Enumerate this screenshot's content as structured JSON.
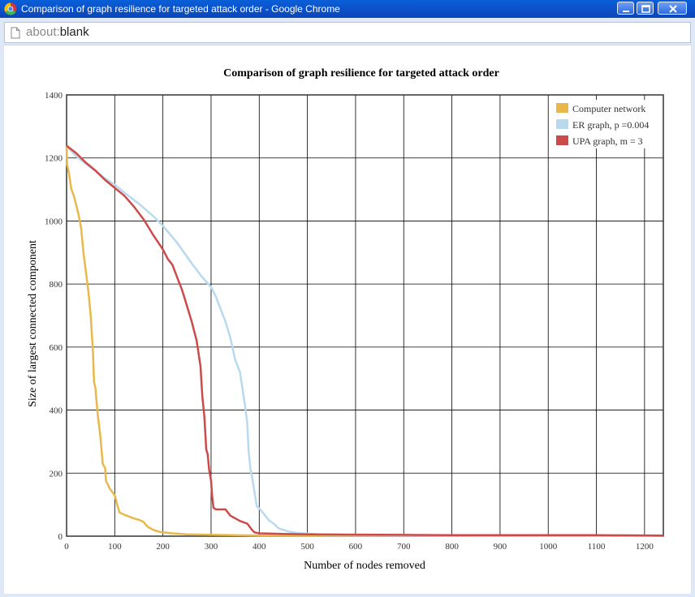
{
  "window": {
    "title": "Comparison of graph resilience for targeted attack order - Google Chrome",
    "app_icon": "chrome-icon",
    "controls": [
      "minimize-icon",
      "maximize-icon",
      "close-icon"
    ]
  },
  "address_bar": {
    "scheme": "about:",
    "path": "blank",
    "icon": "page-icon"
  },
  "chart_data": {
    "type": "line",
    "title": "Comparison of graph resilience for targeted attack order",
    "xlabel": "Number of nodes removed",
    "ylabel": "Size of largest connected component",
    "xlim": [
      0,
      1239
    ],
    "ylim": [
      0,
      1400
    ],
    "xticks": [
      0,
      100,
      200,
      300,
      400,
      500,
      600,
      700,
      800,
      900,
      1000,
      1100,
      1200
    ],
    "yticks": [
      0,
      200,
      400,
      600,
      800,
      1000,
      1200,
      1400
    ],
    "grid": true,
    "legend_position": "top-right",
    "series": [
      {
        "name": "Computer network",
        "color": "#e8b94a",
        "points": [
          [
            0,
            1239
          ],
          [
            1,
            1180
          ],
          [
            5,
            1150
          ],
          [
            10,
            1100
          ],
          [
            15,
            1080
          ],
          [
            20,
            1050
          ],
          [
            25,
            1020
          ],
          [
            30,
            980
          ],
          [
            35,
            900
          ],
          [
            40,
            840
          ],
          [
            45,
            780
          ],
          [
            50,
            700
          ],
          [
            55,
            580
          ],
          [
            57,
            490
          ],
          [
            60,
            470
          ],
          [
            62,
            430
          ],
          [
            65,
            380
          ],
          [
            70,
            320
          ],
          [
            75,
            230
          ],
          [
            80,
            215
          ],
          [
            82,
            175
          ],
          [
            90,
            150
          ],
          [
            100,
            130
          ],
          [
            105,
            100
          ],
          [
            110,
            75
          ],
          [
            120,
            68
          ],
          [
            130,
            62
          ],
          [
            140,
            56
          ],
          [
            150,
            52
          ],
          [
            160,
            45
          ],
          [
            165,
            35
          ],
          [
            170,
            28
          ],
          [
            180,
            20
          ],
          [
            190,
            15
          ],
          [
            200,
            12
          ],
          [
            220,
            9
          ],
          [
            250,
            6
          ],
          [
            300,
            4
          ],
          [
            350,
            3
          ],
          [
            400,
            2
          ],
          [
            500,
            1
          ],
          [
            600,
            1
          ],
          [
            800,
            1
          ],
          [
            1000,
            1
          ],
          [
            1239,
            1
          ]
        ]
      },
      {
        "name": "ER graph, p =0.004",
        "color": "#b9d9ef",
        "points": [
          [
            0,
            1239
          ],
          [
            20,
            1205
          ],
          [
            50,
            1170
          ],
          [
            80,
            1135
          ],
          [
            100,
            1115
          ],
          [
            120,
            1090
          ],
          [
            150,
            1055
          ],
          [
            180,
            1015
          ],
          [
            200,
            985
          ],
          [
            230,
            930
          ],
          [
            260,
            865
          ],
          [
            280,
            825
          ],
          [
            300,
            790
          ],
          [
            310,
            760
          ],
          [
            320,
            720
          ],
          [
            330,
            680
          ],
          [
            340,
            630
          ],
          [
            350,
            560
          ],
          [
            360,
            520
          ],
          [
            365,
            470
          ],
          [
            370,
            420
          ],
          [
            375,
            360
          ],
          [
            378,
            270
          ],
          [
            382,
            210
          ],
          [
            385,
            190
          ],
          [
            390,
            140
          ],
          [
            395,
            95
          ],
          [
            400,
            88
          ],
          [
            410,
            70
          ],
          [
            420,
            50
          ],
          [
            430,
            40
          ],
          [
            440,
            25
          ],
          [
            450,
            20
          ],
          [
            460,
            15
          ],
          [
            480,
            10
          ],
          [
            500,
            8
          ],
          [
            520,
            6
          ],
          [
            540,
            5
          ],
          [
            600,
            4
          ],
          [
            700,
            3
          ],
          [
            800,
            2
          ],
          [
            1000,
            1
          ],
          [
            1239,
            1
          ]
        ]
      },
      {
        "name": "UPA graph, m = 3",
        "color": "#cc4a4a",
        "points": [
          [
            0,
            1239
          ],
          [
            20,
            1215
          ],
          [
            40,
            1185
          ],
          [
            60,
            1160
          ],
          [
            80,
            1130
          ],
          [
            100,
            1105
          ],
          [
            120,
            1080
          ],
          [
            140,
            1045
          ],
          [
            160,
            1005
          ],
          [
            180,
            955
          ],
          [
            200,
            910
          ],
          [
            210,
            880
          ],
          [
            220,
            860
          ],
          [
            230,
            820
          ],
          [
            240,
            780
          ],
          [
            250,
            730
          ],
          [
            260,
            680
          ],
          [
            270,
            620
          ],
          [
            278,
            540
          ],
          [
            282,
            440
          ],
          [
            286,
            380
          ],
          [
            290,
            275
          ],
          [
            293,
            260
          ],
          [
            296,
            210
          ],
          [
            300,
            175
          ],
          [
            302,
            130
          ],
          [
            305,
            90
          ],
          [
            310,
            85
          ],
          [
            330,
            85
          ],
          [
            340,
            65
          ],
          [
            360,
            48
          ],
          [
            375,
            40
          ],
          [
            380,
            30
          ],
          [
            385,
            20
          ],
          [
            390,
            12
          ],
          [
            400,
            9
          ],
          [
            450,
            7
          ],
          [
            500,
            6
          ],
          [
            600,
            5
          ],
          [
            700,
            4
          ],
          [
            800,
            3
          ],
          [
            900,
            3
          ],
          [
            1000,
            3
          ],
          [
            1100,
            3
          ],
          [
            1239,
            2
          ]
        ]
      }
    ]
  }
}
